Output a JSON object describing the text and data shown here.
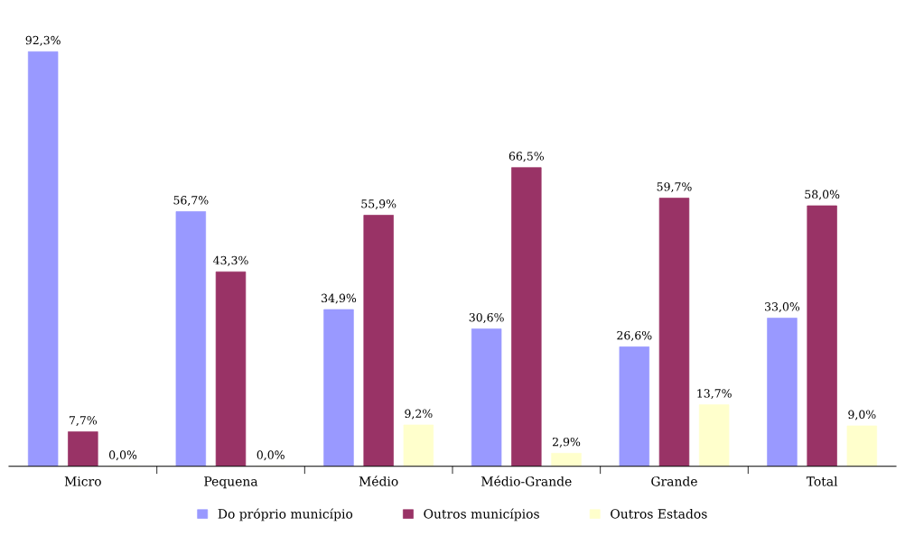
{
  "chart_data": {
    "type": "bar",
    "categories": [
      "Micro",
      "Pequena",
      "Médio",
      "Médio-Grande",
      "Grande",
      "Total"
    ],
    "series": [
      {
        "name": "Do próprio município",
        "color": "#9999ff",
        "values": [
          92.3,
          56.7,
          34.9,
          30.6,
          26.6,
          33.0
        ],
        "value_labels": [
          "92,3%",
          "56,7%",
          "34,9%",
          "30,6%",
          "26,6%",
          "33,0%"
        ]
      },
      {
        "name": "Outros municípios",
        "color": "#993366",
        "values": [
          7.7,
          43.3,
          55.9,
          66.5,
          59.7,
          58.0
        ],
        "value_labels": [
          "7,7%",
          "43,3%",
          "55,9%",
          "66,5%",
          "59,7%",
          "58,0%"
        ]
      },
      {
        "name": "Outros Estados",
        "color": "#ffffcc",
        "values": [
          0.0,
          0.0,
          9.2,
          2.9,
          13.7,
          9.0
        ],
        "value_labels": [
          "0,0%",
          "0,0%",
          "9,2%",
          "2,9%",
          "13,7%",
          "9,0%"
        ]
      }
    ],
    "legend": "bottom",
    "grid": false
  }
}
